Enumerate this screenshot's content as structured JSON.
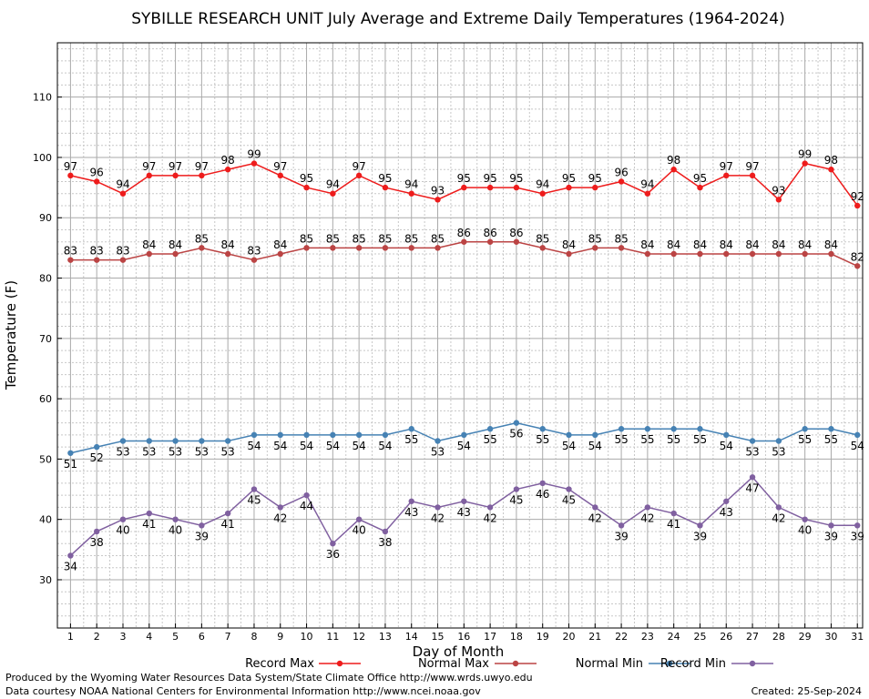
{
  "chart_data": {
    "type": "line",
    "title": "SYBILLE RESEARCH UNIT July Average and Extreme Daily Temperatures (1964-2024)",
    "xlabel": "Day of Month",
    "ylabel": "Temperature (F)",
    "ylim": [
      22,
      119
    ],
    "xlim": [
      0.5,
      31.2
    ],
    "yticks": [
      30,
      40,
      50,
      60,
      70,
      80,
      90,
      100,
      110
    ],
    "x": [
      1,
      2,
      3,
      4,
      5,
      6,
      7,
      8,
      9,
      10,
      11,
      12,
      13,
      14,
      15,
      16,
      17,
      18,
      19,
      20,
      21,
      22,
      23,
      24,
      25,
      26,
      27,
      28,
      29,
      30,
      31
    ],
    "grid": true,
    "legend_position": "bottom",
    "series": [
      {
        "name": "Record Max",
        "color": "#ee1c1c",
        "label_side": "above",
        "values": [
          97,
          96,
          94,
          97,
          97,
          97,
          98,
          99,
          97,
          95,
          94,
          97,
          95,
          94,
          93,
          95,
          95,
          95,
          94,
          95,
          95,
          96,
          94,
          98,
          95,
          97,
          97,
          93,
          99,
          98,
          92
        ]
      },
      {
        "name": "Normal Max",
        "color": "#bb4444",
        "label_side": "above",
        "values": [
          83,
          83,
          83,
          84,
          84,
          85,
          84,
          83,
          84,
          85,
          85,
          85,
          85,
          85,
          85,
          86,
          86,
          86,
          85,
          84,
          85,
          85,
          84,
          84,
          84,
          84,
          84,
          84,
          84,
          84,
          82
        ]
      },
      {
        "name": "Normal Min",
        "color": "#4682b4",
        "label_side": "below",
        "values": [
          51,
          52,
          53,
          53,
          53,
          53,
          53,
          54,
          54,
          54,
          54,
          54,
          54,
          55,
          53,
          54,
          55,
          56,
          55,
          54,
          54,
          55,
          55,
          55,
          55,
          54,
          53,
          53,
          55,
          55,
          54
        ]
      },
      {
        "name": "Record Min",
        "color": "#8060a0",
        "label_side": "below",
        "values": [
          34,
          38,
          40,
          41,
          40,
          39,
          41,
          45,
          42,
          44,
          36,
          40,
          38,
          43,
          42,
          43,
          42,
          45,
          46,
          45,
          42,
          39,
          42,
          41,
          39,
          43,
          47,
          42,
          40,
          39,
          39
        ]
      }
    ]
  },
  "footer": {
    "produced_by": "Produced by the Wyoming Water Resources Data System/State Climate Office http://www.wrds.uwyo.edu",
    "data_courtesy": "Data courtesy NOAA National Centers for Environmental Information http://www.ncei.noaa.gov",
    "created": "Created:  25-Sep-2024"
  }
}
